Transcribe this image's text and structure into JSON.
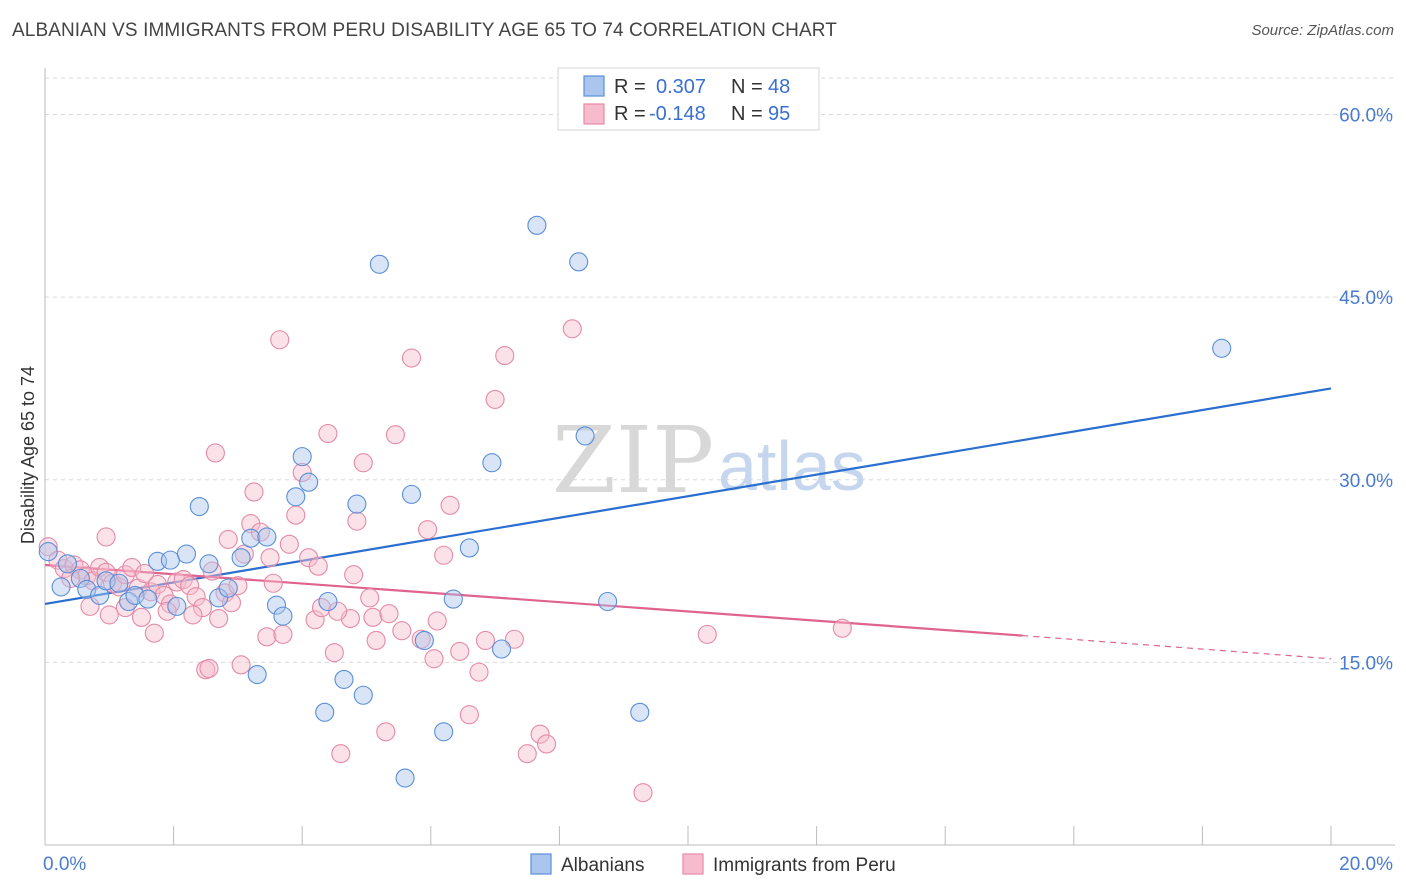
{
  "title": "ALBANIAN VS IMMIGRANTS FROM PERU DISABILITY AGE 65 TO 74 CORRELATION CHART",
  "source": "Source: ZipAtlas.com",
  "watermark": {
    "zip": "ZIP",
    "atlas": "atlas"
  },
  "colors": {
    "blue_fill": "#aac6ee",
    "blue_stroke": "#5a8fd8",
    "blue_line": "#2a6fd0",
    "pink_fill": "#f6bccd",
    "pink_stroke": "#e58aa8",
    "pink_line": "#e0628f",
    "grid": "#d9d9d9",
    "axis_text": "#4a7bd0"
  },
  "legend": {
    "rows": [
      {
        "r_label": "R =",
        "r_value": "0.307",
        "n_label": "N =",
        "n_value": "48"
      },
      {
        "r_label": "R =",
        "r_value": "-0.148",
        "n_label": "N =",
        "n_value": "95"
      }
    ]
  },
  "chart_data": {
    "type": "scatter",
    "title": "ALBANIAN VS IMMIGRANTS FROM PERU DISABILITY AGE 65 TO 74 CORRELATION CHART",
    "xlabel": "",
    "ylabel": "Disability Age 65 to 74",
    "xlim": [
      0,
      20
    ],
    "ylim": [
      0,
      63
    ],
    "x_tick_labels": [
      "0.0%",
      "20.0%"
    ],
    "y_ticks": [
      15,
      30,
      45,
      60
    ],
    "y_tick_labels": [
      "15.0%",
      "30.0%",
      "45.0%",
      "60.0%"
    ],
    "grid": true,
    "legend_position": "top-center",
    "series": [
      {
        "name": "Albanians",
        "color": "#aac6ee",
        "trend": {
          "x": [
            0,
            20
          ],
          "y": [
            19.8,
            37.5
          ]
        },
        "points": [
          [
            0.05,
            24.1
          ],
          [
            0.25,
            21.2
          ],
          [
            0.35,
            23.1
          ],
          [
            0.55,
            21.9
          ],
          [
            0.65,
            21.0
          ],
          [
            0.85,
            20.5
          ],
          [
            0.95,
            21.7
          ],
          [
            1.15,
            21.5
          ],
          [
            1.3,
            20.0
          ],
          [
            1.4,
            20.5
          ],
          [
            1.6,
            20.2
          ],
          [
            1.75,
            23.3
          ],
          [
            1.95,
            23.4
          ],
          [
            2.05,
            19.6
          ],
          [
            2.2,
            23.9
          ],
          [
            2.4,
            27.8
          ],
          [
            2.55,
            23.1
          ],
          [
            2.7,
            20.3
          ],
          [
            2.85,
            21.1
          ],
          [
            3.05,
            23.6
          ],
          [
            3.2,
            25.2
          ],
          [
            3.3,
            14.0
          ],
          [
            3.45,
            25.3
          ],
          [
            3.6,
            19.7
          ],
          [
            3.7,
            18.8
          ],
          [
            3.9,
            28.6
          ],
          [
            4.0,
            31.9
          ],
          [
            4.1,
            29.8
          ],
          [
            4.4,
            20.0
          ],
          [
            4.65,
            13.6
          ],
          [
            4.85,
            28.0
          ],
          [
            4.95,
            12.3
          ],
          [
            5.2,
            47.7
          ],
          [
            5.6,
            5.5
          ],
          [
            5.7,
            28.8
          ],
          [
            5.9,
            16.8
          ],
          [
            6.2,
            9.3
          ],
          [
            6.35,
            20.2
          ],
          [
            6.6,
            24.4
          ],
          [
            6.95,
            31.4
          ],
          [
            7.1,
            16.1
          ],
          [
            7.65,
            50.9
          ],
          [
            8.3,
            47.9
          ],
          [
            8.4,
            33.6
          ],
          [
            8.75,
            20.0
          ],
          [
            9.25,
            10.9
          ],
          [
            18.3,
            40.8
          ],
          [
            4.35,
            10.9
          ]
        ]
      },
      {
        "name": "Immigrants from Peru",
        "color": "#f6bccd",
        "trend": {
          "x": [
            0,
            15.2
          ],
          "y": [
            23.0,
            17.2
          ]
        },
        "trend_dashed": {
          "x": [
            15.2,
            20
          ],
          "y": [
            17.2,
            15.3
          ]
        },
        "points": [
          [
            0.05,
            24.5
          ],
          [
            0.2,
            23.4
          ],
          [
            0.3,
            22.7
          ],
          [
            0.45,
            23.0
          ],
          [
            0.55,
            22.6
          ],
          [
            0.65,
            22.1
          ],
          [
            0.75,
            21.7
          ],
          [
            0.85,
            22.8
          ],
          [
            0.95,
            22.4
          ],
          [
            1.05,
            21.5
          ],
          [
            1.15,
            21.2
          ],
          [
            1.25,
            22.2
          ],
          [
            1.35,
            22.8
          ],
          [
            1.45,
            21.1
          ],
          [
            1.55,
            22.3
          ],
          [
            1.65,
            20.8
          ],
          [
            1.75,
            21.4
          ],
          [
            1.85,
            20.5
          ],
          [
            1.95,
            19.8
          ],
          [
            2.05,
            21.6
          ],
          [
            2.15,
            21.8
          ],
          [
            2.25,
            21.3
          ],
          [
            2.35,
            20.4
          ],
          [
            2.45,
            19.5
          ],
          [
            2.6,
            22.5
          ],
          [
            2.7,
            18.6
          ],
          [
            2.8,
            20.7
          ],
          [
            2.9,
            19.9
          ],
          [
            3.0,
            21.3
          ],
          [
            3.1,
            23.9
          ],
          [
            3.2,
            26.4
          ],
          [
            3.35,
            25.7
          ],
          [
            3.45,
            17.1
          ],
          [
            3.55,
            21.5
          ],
          [
            3.7,
            17.3
          ],
          [
            3.8,
            24.7
          ],
          [
            3.9,
            27.1
          ],
          [
            4.0,
            30.6
          ],
          [
            4.1,
            23.6
          ],
          [
            4.2,
            18.5
          ],
          [
            4.3,
            19.5
          ],
          [
            4.4,
            33.8
          ],
          [
            4.5,
            15.8
          ],
          [
            4.6,
            7.5
          ],
          [
            4.75,
            18.6
          ],
          [
            4.85,
            26.6
          ],
          [
            4.95,
            31.4
          ],
          [
            5.05,
            20.3
          ],
          [
            5.15,
            16.8
          ],
          [
            5.3,
            9.3
          ],
          [
            5.45,
            33.7
          ],
          [
            5.55,
            17.6
          ],
          [
            5.7,
            40.0
          ],
          [
            5.85,
            16.9
          ],
          [
            5.95,
            25.9
          ],
          [
            6.05,
            15.3
          ],
          [
            6.2,
            23.8
          ],
          [
            6.3,
            27.9
          ],
          [
            6.45,
            15.9
          ],
          [
            6.6,
            10.7
          ],
          [
            6.75,
            14.2
          ],
          [
            6.85,
            16.8
          ],
          [
            7.0,
            36.6
          ],
          [
            7.15,
            40.2
          ],
          [
            7.3,
            16.9
          ],
          [
            7.5,
            7.5
          ],
          [
            7.7,
            9.1
          ],
          [
            7.8,
            8.3
          ],
          [
            8.2,
            42.4
          ],
          [
            9.3,
            4.3
          ],
          [
            10.3,
            17.3
          ],
          [
            12.4,
            17.8
          ],
          [
            0.95,
            25.3
          ],
          [
            1.25,
            19.5
          ],
          [
            1.5,
            18.7
          ],
          [
            1.7,
            17.4
          ],
          [
            2.5,
            14.4
          ],
          [
            2.65,
            32.2
          ],
          [
            2.85,
            25.1
          ],
          [
            3.05,
            14.8
          ],
          [
            3.25,
            29.0
          ],
          [
            3.65,
            41.5
          ],
          [
            4.25,
            22.9
          ],
          [
            4.8,
            22.2
          ],
          [
            5.1,
            18.7
          ],
          [
            0.4,
            21.9
          ],
          [
            0.7,
            19.6
          ],
          [
            1.0,
            18.9
          ],
          [
            1.9,
            19.2
          ],
          [
            2.3,
            18.9
          ],
          [
            2.55,
            14.5
          ],
          [
            3.5,
            23.6
          ],
          [
            4.55,
            19.2
          ],
          [
            5.35,
            19.0
          ],
          [
            6.1,
            18.4
          ]
        ]
      }
    ]
  },
  "bottom_legend": {
    "items": [
      "Albanians",
      "Immigrants from Peru"
    ]
  }
}
